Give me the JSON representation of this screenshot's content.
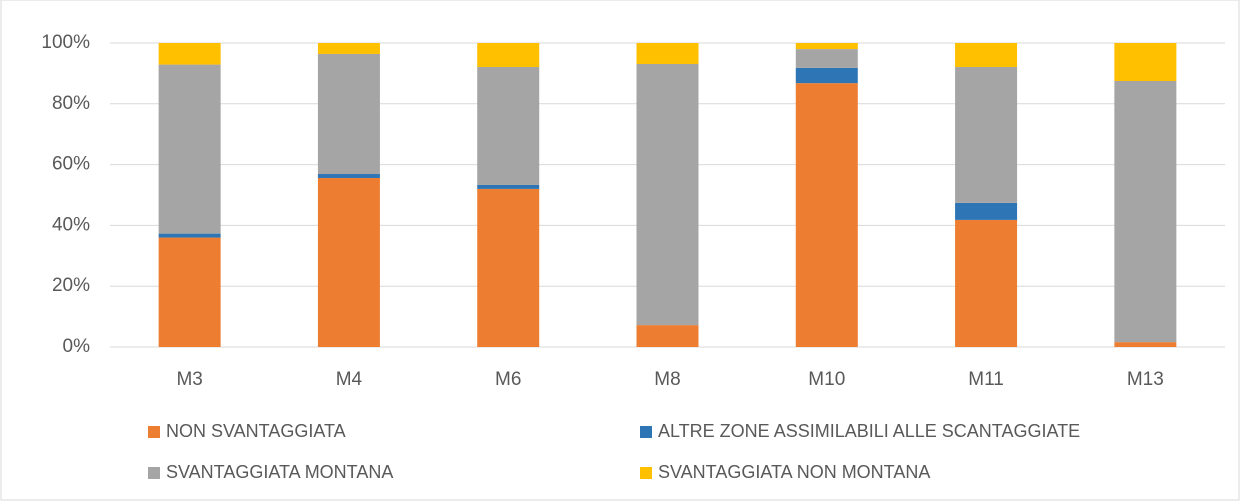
{
  "chart_data": {
    "type": "stacked_bar",
    "categories": [
      "M3",
      "M4",
      "M6",
      "M8",
      "M10",
      "M11",
      "M13"
    ],
    "series": [
      {
        "name": "NON SVANTAGGIATA",
        "color": "#ed7d31",
        "values": [
          36,
          55.6,
          52,
          7.2,
          86.8,
          41.8,
          1.6
        ]
      },
      {
        "name": "ALTRE ZONE ASSIMILABILI ALLE SCANTAGGIATE",
        "color": "#2e75b6",
        "values": [
          1.3,
          1.3,
          1.3,
          0,
          5,
          5.6,
          0
        ]
      },
      {
        "name": "SVANTAGGIATA MONTANA",
        "color": "#a5a5a5",
        "values": [
          55.6,
          39.5,
          38.8,
          85.9,
          6.2,
          44.7,
          85.9
        ]
      },
      {
        "name": "SVANTAGGIATA NON MONTANA",
        "color": "#ffc000",
        "values": [
          7.1,
          3.6,
          7.9,
          6.9,
          2,
          7.9,
          12.5
        ]
      }
    ],
    "ylim": [
      0,
      100
    ],
    "yticks": [
      {
        "value": 0,
        "label": "0%"
      },
      {
        "value": 20,
        "label": "20%"
      },
      {
        "value": 40,
        "label": "40%"
      },
      {
        "value": 60,
        "label": "60%"
      },
      {
        "value": 80,
        "label": "80%"
      },
      {
        "value": 100,
        "label": "100%"
      }
    ],
    "grid": true,
    "legend": "bottom"
  }
}
